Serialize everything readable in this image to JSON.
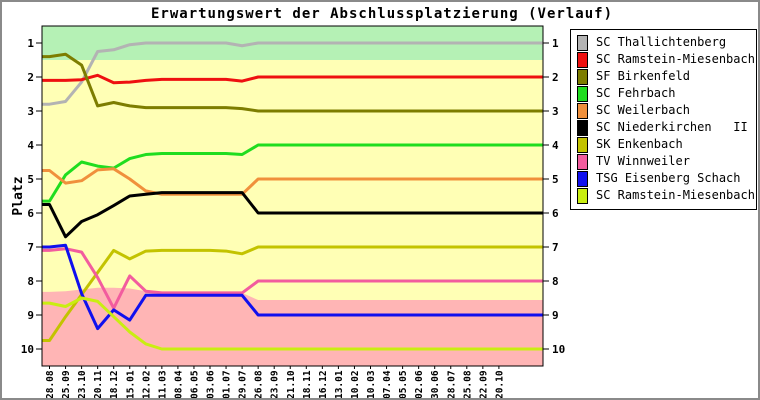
{
  "window": {
    "title": "Erwartungswert der Abschlussplatzierung (Verlauf)"
  },
  "chart_data": {
    "type": "line",
    "title": "Erwartungswert der Abschlussplatzierung (Verlauf)",
    "ylabel": "Platz",
    "y_inverted": true,
    "ylim": [
      0.5,
      10.5
    ],
    "y_ticks": [
      1,
      2,
      3,
      4,
      5,
      6,
      7,
      8,
      9,
      10
    ],
    "grid": false,
    "legend_position": "top-right",
    "x_tick_labels": [
      "28.08",
      "25.09",
      "23.10",
      "20.11",
      "18.12",
      "15.01",
      "12.02",
      "11.03",
      "08.04",
      "06.05",
      "03.06",
      "01.07",
      "29.07",
      "26.08",
      "23.09",
      "21.10",
      "18.11",
      "16.12",
      "13.01",
      "10.02",
      "10.03",
      "07.04",
      "05.05",
      "02.06",
      "30.06",
      "28.07",
      "25.08",
      "22.09",
      "20.10"
    ],
    "zones": {
      "promotion_color": "#b5f1b5",
      "neutral_color": "#ffffb5",
      "relegation_color": "#ffb5b5",
      "promotion_until_rank": 1.5,
      "relegation_boundary": [
        8.32,
        8.3,
        8.25,
        8.2,
        8.2,
        8.22,
        8.3,
        8.32,
        8.32,
        8.32,
        8.32,
        8.32,
        8.35,
        8.56,
        8.56,
        8.56,
        8.56,
        8.56,
        8.56,
        8.56,
        8.56,
        8.56,
        8.56,
        8.56,
        8.56,
        8.56,
        8.56,
        8.56,
        8.56
      ]
    },
    "series": [
      {
        "name": "SC Thallichtenberg",
        "color": "#b3b3b3",
        "final_rank": 1,
        "values": [
          2.8,
          2.72,
          2.15,
          1.25,
          1.2,
          1.05,
          1,
          1,
          1,
          1,
          1,
          1,
          1.08,
          1,
          1,
          1,
          1,
          1,
          1,
          1,
          1,
          1,
          1,
          1,
          1,
          1,
          1,
          1,
          1
        ]
      },
      {
        "name": "SC Ramstein-Miesenbach",
        "color": "#ee1010",
        "final_rank": 2,
        "values": [
          2.1,
          2.1,
          2.08,
          1.95,
          2.17,
          2.15,
          2.1,
          2.07,
          2.07,
          2.07,
          2.07,
          2.07,
          2.12,
          2,
          2,
          2,
          2,
          2,
          2,
          2,
          2,
          2,
          2,
          2,
          2,
          2,
          2,
          2,
          2
        ]
      },
      {
        "name": "SF Birkenfeld",
        "color": "#7d7d00",
        "final_rank": 3,
        "values": [
          1.4,
          1.33,
          1.65,
          2.85,
          2.75,
          2.85,
          2.9,
          2.9,
          2.9,
          2.9,
          2.9,
          2.9,
          2.93,
          3,
          3,
          3,
          3,
          3,
          3,
          3,
          3,
          3,
          3,
          3,
          3,
          3,
          3,
          3,
          3
        ]
      },
      {
        "name": "SC Fehrbach",
        "color": "#1fdd1f",
        "final_rank": 4,
        "values": [
          5.65,
          4.88,
          4.5,
          4.62,
          4.68,
          4.4,
          4.28,
          4.25,
          4.25,
          4.25,
          4.25,
          4.25,
          4.28,
          4,
          4,
          4,
          4,
          4,
          4,
          4,
          4,
          4,
          4,
          4,
          4,
          4,
          4,
          4,
          4
        ]
      },
      {
        "name": "SC Weilerbach",
        "color": "#f0903c",
        "final_rank": 5,
        "values": [
          4.75,
          5.12,
          5.05,
          4.73,
          4.7,
          5.0,
          5.35,
          5.45,
          5.45,
          5.45,
          5.45,
          5.45,
          5.45,
          5,
          5,
          5,
          5,
          5,
          5,
          5,
          5,
          5,
          5,
          5,
          5,
          5,
          5,
          5,
          5
        ]
      },
      {
        "name": "SC Niederkirchen   II",
        "color": "#000000",
        "final_rank": 6,
        "values": [
          5.75,
          6.7,
          6.25,
          6.05,
          5.78,
          5.5,
          5.45,
          5.4,
          5.4,
          5.4,
          5.4,
          5.4,
          5.4,
          6,
          6,
          6,
          6,
          6,
          6,
          6,
          6,
          6,
          6,
          6,
          6,
          6,
          6,
          6,
          6
        ]
      },
      {
        "name": "SK Enkenbach",
        "color": "#c3c300",
        "final_rank": 7,
        "values": [
          9.75,
          9.05,
          8.4,
          7.75,
          7.1,
          7.35,
          7.12,
          7.1,
          7.1,
          7.1,
          7.1,
          7.12,
          7.2,
          7,
          7,
          7,
          7,
          7,
          7,
          7,
          7,
          7,
          7,
          7,
          7,
          7,
          7,
          7,
          7
        ]
      },
      {
        "name": "TV Winnweiler",
        "color": "#f25c9e",
        "final_rank": 8,
        "values": [
          7.1,
          7.05,
          7.15,
          7.9,
          8.8,
          7.85,
          8.3,
          8.35,
          8.35,
          8.35,
          8.35,
          8.35,
          8.35,
          8,
          8,
          8,
          8,
          8,
          8,
          8,
          8,
          8,
          8,
          8,
          8,
          8,
          8,
          8,
          8
        ]
      },
      {
        "name": "TSG Eisenberg Schach",
        "color": "#1010ee",
        "final_rank": 9,
        "values": [
          7.0,
          6.95,
          8.37,
          9.4,
          8.85,
          9.15,
          8.42,
          8.42,
          8.42,
          8.42,
          8.42,
          8.42,
          8.42,
          9,
          9,
          9,
          9,
          9,
          9,
          9,
          9,
          9,
          9,
          9,
          9,
          9,
          9,
          9,
          9
        ]
      },
      {
        "name": "SC Ramstein-Miesenbach  II",
        "color": "#c9ee11",
        "final_rank": 10,
        "values": [
          8.65,
          8.75,
          8.5,
          8.6,
          9.05,
          9.5,
          9.85,
          10,
          10,
          10,
          10,
          10,
          10,
          10,
          10,
          10,
          10,
          10,
          10,
          10,
          10,
          10,
          10,
          10,
          10,
          10,
          10,
          10,
          10
        ]
      }
    ]
  }
}
